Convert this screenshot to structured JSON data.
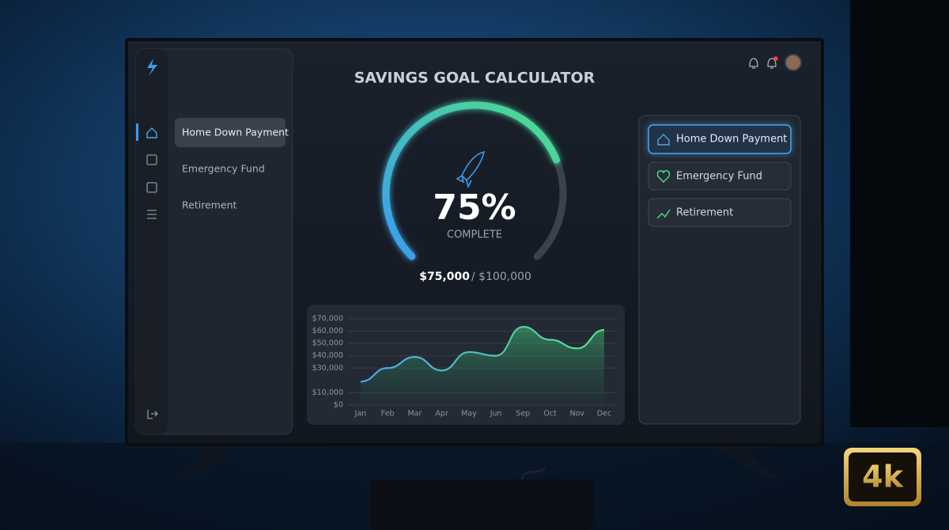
{
  "header": {
    "title": "SAVINGS GOAL CALCULATOR"
  },
  "sidebar": {
    "items": [
      "Home Down Payment",
      "Emergency Fund",
      "Retirement"
    ]
  },
  "goals_panel": {
    "items": [
      "Home Down Payment",
      "Emergency Fund",
      "Retirement"
    ]
  },
  "gauge": {
    "value": 75,
    "value_label": "75%",
    "caption": "COMPLETE",
    "saved": "$75,000",
    "goal": "/ $100,000"
  },
  "chart_data": {
    "type": "area",
    "categories": [
      "Jan",
      "Feb",
      "Mar",
      "Apr",
      "May",
      "Jun",
      "Sep",
      "Oct",
      "Nov",
      "Dec"
    ],
    "values": [
      19000,
      30000,
      39000,
      28000,
      43000,
      40000,
      63500,
      53000,
      46000,
      61000
    ],
    "color": "#4ade80",
    "ylim": [
      0,
      70000
    ],
    "yticks": [
      {
        "value": 0,
        "label": "$0"
      },
      {
        "value": 10000,
        "label": "$10,000"
      },
      {
        "value": 30000,
        "label": "$30,000"
      },
      {
        "value": 40000,
        "label": "$40,000"
      },
      {
        "value": 50000,
        "label": "$50,000"
      },
      {
        "value": 60000,
        "label": "$60,000"
      },
      {
        "value": 70000,
        "label": "$70,000"
      }
    ],
    "grid": true
  },
  "badge": "4k"
}
